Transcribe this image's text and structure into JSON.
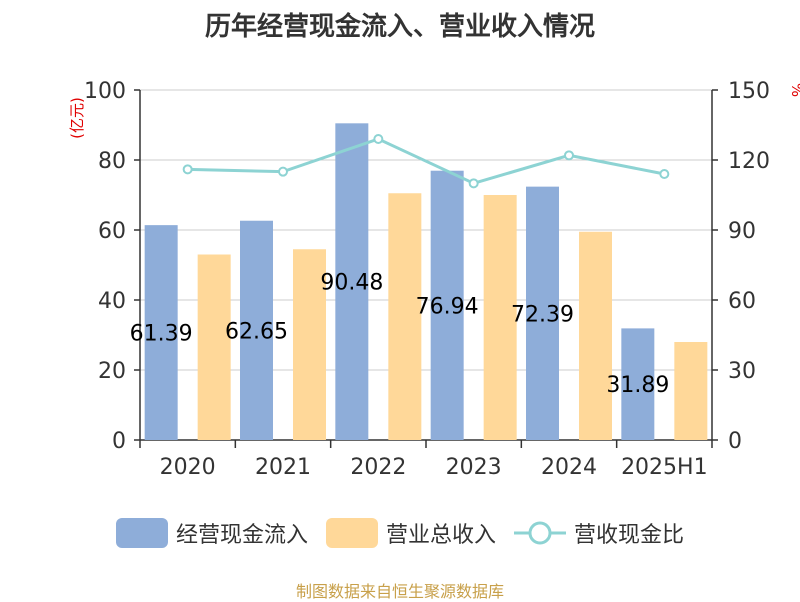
{
  "title": "历年经营现金流入、营业收入情况",
  "footer": "制图数据来自恒生聚源数据库",
  "colors": {
    "cash_inflow": "#8eadd9",
    "revenue": "#ffd899",
    "ratio": "#8dd3d3",
    "axis": "#333333",
    "grid": "#cccccc",
    "unit": "#e00000"
  },
  "chart_data": {
    "type": "bar",
    "title": "历年经营现金流入、营业收入情况",
    "categories": [
      "2020",
      "2021",
      "2022",
      "2023",
      "2024",
      "2025H1"
    ],
    "ylabel_left": "(亿元)",
    "ylabel_right": "%",
    "ylim_left": [
      0,
      100
    ],
    "ylim_right": [
      0,
      150
    ],
    "yticks_left": [
      0,
      20,
      40,
      60,
      80,
      100
    ],
    "yticks_right": [
      0,
      30,
      60,
      90,
      120,
      150
    ],
    "grid": true,
    "legend_position": "bottom",
    "series": [
      {
        "name": "经营现金流入",
        "type": "bar",
        "axis": "left",
        "values": [
          61.39,
          62.65,
          90.48,
          76.94,
          72.39,
          31.89
        ],
        "labels": [
          "61.39",
          "62.65",
          "90.48",
          "76.94",
          "72.39",
          "31.89"
        ]
      },
      {
        "name": "营业总收入",
        "type": "bar",
        "axis": "left",
        "values": [
          53.0,
          54.5,
          70.5,
          70.0,
          59.5,
          28.0
        ]
      },
      {
        "name": "营收现金比",
        "type": "line",
        "axis": "right",
        "values": [
          116,
          115,
          129,
          110,
          122,
          114
        ]
      }
    ]
  }
}
